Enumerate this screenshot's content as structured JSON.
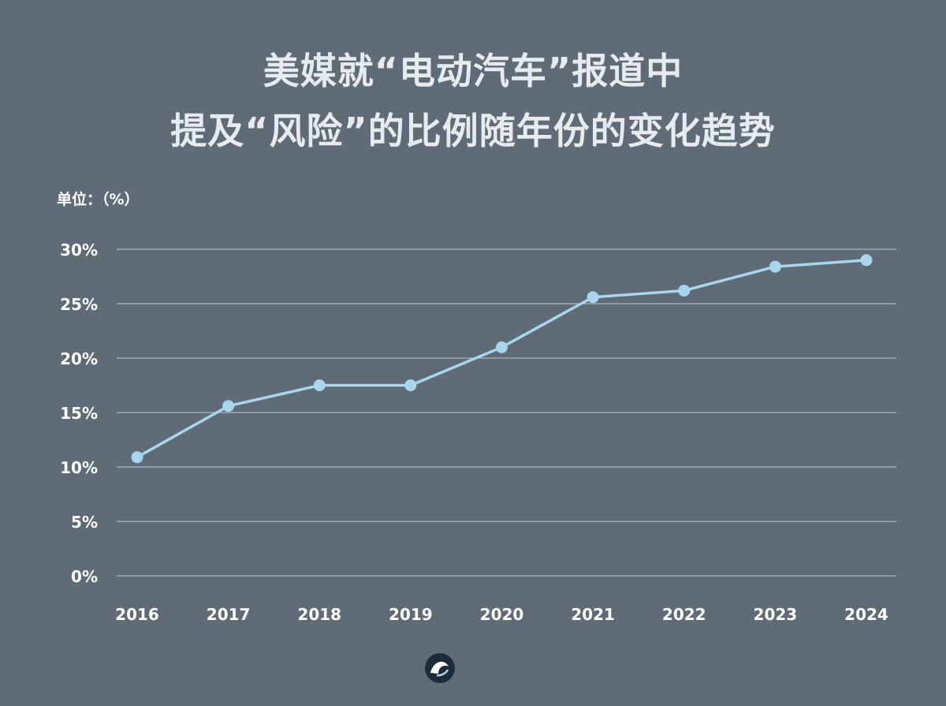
{
  "title": {
    "line1": "美媒就“电动汽车”报道中",
    "line2": "提及“风险”的比例随年份的变化趋势"
  },
  "unit_label": "单位：（%）",
  "colors": {
    "background": "#5f6b77",
    "line": "#a9d6ec",
    "grid": "#c2c8ce",
    "text": "#ffffff"
  },
  "chart_data": {
    "type": "line",
    "title": "美媒就“电动汽车”报道中提及“风险”的比例随年份的变化趋势",
    "xlabel": "",
    "ylabel": "单位：（%）",
    "categories": [
      "2016",
      "2017",
      "2018",
      "2019",
      "2020",
      "2021",
      "2022",
      "2023",
      "2024"
    ],
    "series": [
      {
        "values": [
          10.9,
          15.6,
          17.5,
          17.5,
          21.0,
          25.6,
          26.2,
          28.4,
          29.0
        ]
      }
    ],
    "ylim": [
      0,
      30
    ],
    "yticks": [
      0,
      5,
      10,
      15,
      20,
      25,
      30
    ],
    "ytick_labels": [
      "0%",
      "5%",
      "10%",
      "15%",
      "20%",
      "25%",
      "30%"
    ],
    "grid": true,
    "legend": "none"
  },
  "logo": {
    "icon": "brand-logo-icon"
  }
}
